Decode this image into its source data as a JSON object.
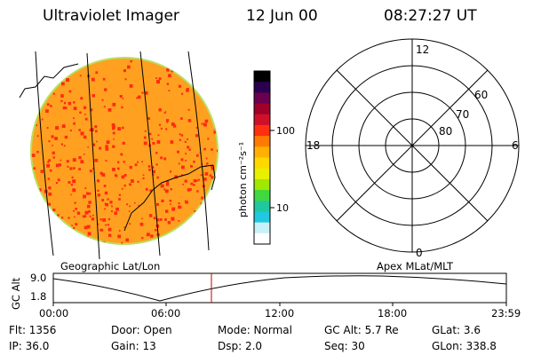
{
  "header": {
    "title": "Ultraviolet Imager",
    "date": "12 Jun 00",
    "time": "08:27:27 UT"
  },
  "colorbar": {
    "unit_label": "photon cm⁻²s⁻¹",
    "ticks": [
      "100",
      "10"
    ],
    "colors": [
      "#000000",
      "#2a0050",
      "#6a0050",
      "#a0002a",
      "#d0102a",
      "#ff3010",
      "#ff7a00",
      "#ffb000",
      "#ffd800",
      "#e8f000",
      "#a0e800",
      "#40d840",
      "#20c8a0",
      "#20c8e0",
      "#c8f0f8",
      "#ffffff"
    ]
  },
  "globe": {
    "caption": "Geographic Lat/Lon",
    "colors": {
      "fill": "#ffa020",
      "dots": "#ff2a10",
      "rim": "#b8e060"
    }
  },
  "polar": {
    "caption": "Apex MLat/MLT",
    "mlt_labels": {
      "top": "12",
      "left": "18",
      "right": "6",
      "bottom": "0"
    },
    "lat_labels": [
      "80",
      "70",
      "60"
    ]
  },
  "orbit": {
    "ylabel": "GC Alt",
    "ytick_top": "9.0",
    "ytick_bottom": "1.8",
    "xticks": [
      "00:00",
      "06:00",
      "12:00",
      "18:00",
      "23:59"
    ],
    "marker_color": "#c00000"
  },
  "info": {
    "flt": "Flt:  1356",
    "ip": "IP:  36.0",
    "door": "Door:  Open",
    "gain": "Gain:  13",
    "mode": "Mode:  Normal",
    "dsp": "Dsp:     2.0",
    "gcalt": "GC Alt:  5.7 Re",
    "seq": "Seq:  30",
    "glat": "GLat:     3.6",
    "glon": "GLon:  338.8"
  }
}
